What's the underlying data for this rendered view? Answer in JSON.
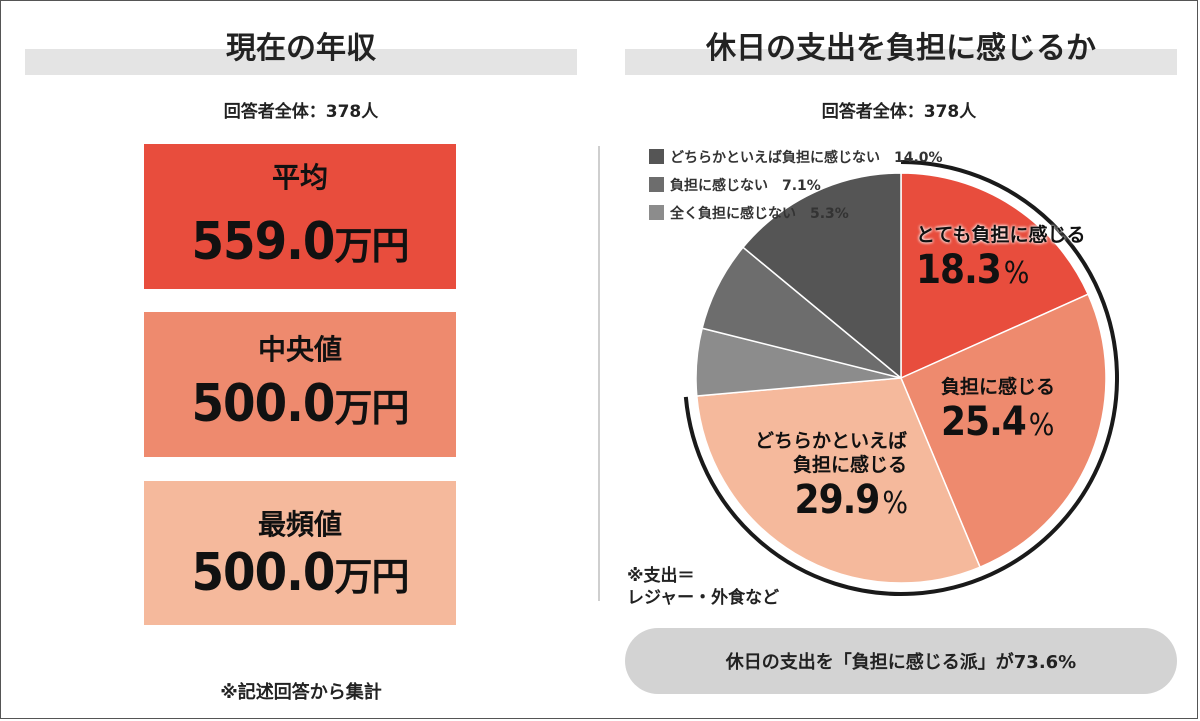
{
  "left_panel": {
    "title": "現在の年収",
    "respondents": "回答者全体：378人",
    "stats": [
      {
        "label": "平均",
        "value": "559.0",
        "unit": "万円",
        "color": "#e84d3d"
      },
      {
        "label": "中央値",
        "value": "500.0",
        "unit": "万円",
        "color": "#ee8a6e"
      },
      {
        "label": "最頻値",
        "value": "500.0",
        "unit": "万円",
        "color": "#f5b99c"
      }
    ],
    "note": "※記述回答から集計"
  },
  "right_panel": {
    "title": "休日の支出を負担に感じるか",
    "respondents": "回答者全体：378人",
    "note_line1": "※支出＝",
    "note_line2": "レジャー・外食など",
    "summary": "休日の支出を「負担に感じる派」が73.6%"
  },
  "chart_data": {
    "type": "pie",
    "start": "12 o'clock, clockwise",
    "slices": [
      {
        "label": "とても負担に感じる",
        "value": 18.3,
        "display": "18.3",
        "color": "#e84d3d"
      },
      {
        "label": "負担に感じる",
        "value": 25.4,
        "display": "25.4",
        "color": "#ee8a6e"
      },
      {
        "label": "どちらかといえば負担に感じる",
        "label_line1": "どちらかといえば",
        "label_line2": "負担に感じる",
        "value": 29.9,
        "display": "29.9",
        "color": "#f5b99c"
      },
      {
        "label": "全く負担に感じない",
        "value": 5.3,
        "display": "5.3%",
        "color": "#8c8c8c"
      },
      {
        "label": "負担に感じない",
        "value": 7.1,
        "display": "7.1%",
        "color": "#6d6d6d"
      },
      {
        "label": "どちらかといえば負担に感じない",
        "value": 14.0,
        "display": "14.0%",
        "color": "#555555"
      }
    ],
    "percent_sign": "%",
    "legend": [
      {
        "text": "どちらかといえば負担に感じない　14.0%",
        "color": "#555555"
      },
      {
        "text": "負担に感じない　7.1%",
        "color": "#6d6d6d"
      },
      {
        "text": "全く負担に感じない　5.3%",
        "color": "#8c8c8c"
      }
    ],
    "highlight_total": 73.6
  }
}
